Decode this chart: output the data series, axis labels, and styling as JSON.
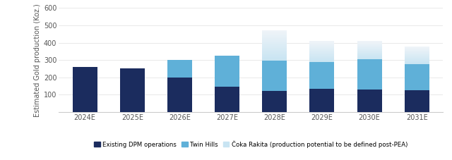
{
  "years": [
    "2024E",
    "2025E",
    "2026E",
    "2027E",
    "2028E",
    "2029E",
    "2030E",
    "2031E"
  ],
  "dpm": [
    260,
    250,
    200,
    148,
    120,
    135,
    128,
    127
  ],
  "twin_hills": [
    0,
    0,
    100,
    177,
    178,
    155,
    175,
    150
  ],
  "coka_rakita": [
    0,
    0,
    0,
    0,
    175,
    120,
    107,
    100
  ],
  "color_dpm": "#1b2c5e",
  "color_twin": "#5fb0d8",
  "color_coka_base": "#c8e4f2",
  "color_coka_top": "#f0f4f8",
  "ylabel": "Estimated Gold production (Koz.)",
  "ylim": [
    0,
    600
  ],
  "yticks": [
    0,
    100,
    200,
    300,
    400,
    500,
    600
  ],
  "legend_dpm": "Existing DPM operations",
  "legend_twin": "Twin Hills",
  "legend_coka": "Čoka Rakita (production potential to be defined post-PEA)",
  "bg_color": "#ffffff",
  "bar_width": 0.52
}
